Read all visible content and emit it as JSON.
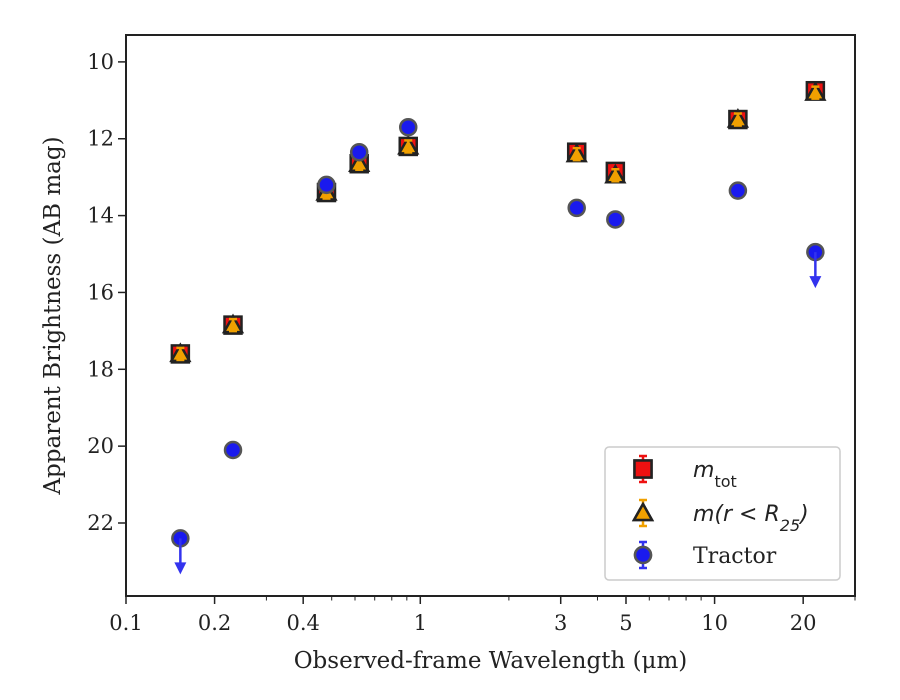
{
  "chart_data": {
    "type": "scatter",
    "xlabel": "Observed-frame Wavelength (μm)",
    "ylabel": "Apparent Brightness (AB mag)",
    "xscale": "log",
    "xlim": [
      0.1,
      30
    ],
    "ylim": [
      23.9,
      9.3
    ],
    "y_inverted": true,
    "grid": false,
    "legend_position": "lower-right",
    "x_ticks": [
      0.1,
      0.2,
      0.4,
      1,
      3,
      5,
      10,
      20
    ],
    "x_tick_labels": [
      "0.1",
      "0.2",
      "0.4",
      "1",
      "3",
      "5",
      "10",
      "20"
    ],
    "y_ticks": [
      10,
      12,
      14,
      16,
      18,
      20,
      22
    ],
    "y_tick_labels": [
      "10",
      "12",
      "14",
      "16",
      "18",
      "20",
      "22"
    ],
    "series": [
      {
        "name": "m_tot",
        "legend_main": "m",
        "legend_sub": "tot",
        "marker": "square",
        "color": "#ee1111",
        "edge_color": "#222222",
        "points": [
          {
            "x": 0.153,
            "y": 17.6
          },
          {
            "x": 0.231,
            "y": 16.85
          },
          {
            "x": 0.48,
            "y": 13.4
          },
          {
            "x": 0.62,
            "y": 12.65
          },
          {
            "x": 0.91,
            "y": 12.2
          },
          {
            "x": 3.4,
            "y": 12.35
          },
          {
            "x": 4.6,
            "y": 12.85
          },
          {
            "x": 12.0,
            "y": 11.5
          },
          {
            "x": 22.0,
            "y": 10.75
          }
        ]
      },
      {
        "name": "m(r < R25)",
        "legend_main": "m(r < R",
        "legend_sub": "25",
        "legend_end": ")",
        "marker": "triangle",
        "color": "#f0a000",
        "edge_color": "#222222",
        "points": [
          {
            "x": 0.153,
            "y": 17.6
          },
          {
            "x": 0.231,
            "y": 16.85
          },
          {
            "x": 0.48,
            "y": 13.4
          },
          {
            "x": 0.62,
            "y": 12.65
          },
          {
            "x": 0.91,
            "y": 12.2
          },
          {
            "x": 3.4,
            "y": 12.4
          },
          {
            "x": 4.6,
            "y": 12.95
          },
          {
            "x": 12.0,
            "y": 11.5
          },
          {
            "x": 22.0,
            "y": 10.8
          }
        ]
      },
      {
        "name": "Tractor",
        "legend_main": "Tractor",
        "marker": "circle",
        "color": "#1a1aee",
        "edge_color": "#555555",
        "points": [
          {
            "x": 0.153,
            "y": 22.4,
            "upper_limit": true
          },
          {
            "x": 0.231,
            "y": 20.1
          },
          {
            "x": 0.48,
            "y": 13.2
          },
          {
            "x": 0.62,
            "y": 12.35
          },
          {
            "x": 0.91,
            "y": 11.7
          },
          {
            "x": 3.4,
            "y": 13.8
          },
          {
            "x": 4.6,
            "y": 14.1
          },
          {
            "x": 12.0,
            "y": 13.35
          },
          {
            "x": 22.0,
            "y": 14.95,
            "upper_limit": true
          }
        ]
      }
    ]
  }
}
